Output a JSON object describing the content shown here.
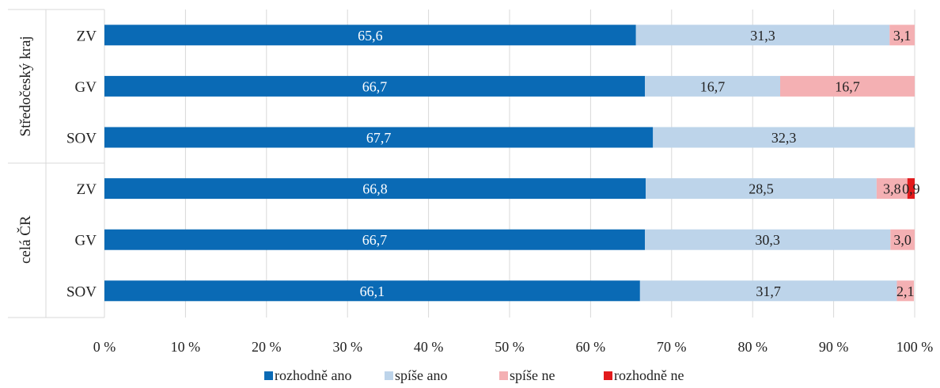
{
  "chart_data": {
    "type": "bar",
    "orientation": "horizontal",
    "stacked": "percent",
    "groups": [
      {
        "label": "Středočeský kraj",
        "categories": [
          "ZV",
          "GV",
          "SOV"
        ]
      },
      {
        "label": "celá ČR",
        "categories": [
          "ZV",
          "GV",
          "SOV"
        ]
      }
    ],
    "series": [
      {
        "name": "rozhodně ano",
        "color": "#0a6ab5",
        "text_color": "#ffffff",
        "values": [
          65.6,
          66.7,
          67.7,
          66.8,
          66.7,
          66.1
        ],
        "labels": [
          "65,6",
          "66,7",
          "67,7",
          "66,8",
          "66,7",
          "66,1"
        ]
      },
      {
        "name": "spíše ano",
        "color": "#bdd4ea",
        "text_color": "#222222",
        "values": [
          31.3,
          16.7,
          32.3,
          28.5,
          30.3,
          31.7
        ],
        "labels": [
          "31,3",
          "16,7",
          "32,3",
          "28,5",
          "30,3",
          "31,7"
        ]
      },
      {
        "name": "spíše ne",
        "color": "#f4b0b3",
        "text_color": "#222222",
        "values": [
          3.1,
          16.7,
          0,
          3.8,
          3.0,
          2.1
        ],
        "labels": [
          "3,1",
          "16,7",
          "",
          "3,8",
          "3,0",
          "2,1"
        ]
      },
      {
        "name": "rozhodně ne",
        "color": "#e21a1c",
        "text_color": "#222222",
        "values": [
          0,
          0,
          0,
          0.9,
          0,
          0
        ],
        "labels": [
          "",
          "",
          "",
          "0,9",
          "",
          ""
        ]
      }
    ],
    "x_ticks": [
      "0 %",
      "10 %",
      "20 %",
      "30 %",
      "40 %",
      "50 %",
      "60 %",
      "70 %",
      "80 %",
      "90 %",
      "100 %"
    ],
    "xlim": [
      0,
      100
    ],
    "grid": true,
    "legend_position": "bottom"
  }
}
